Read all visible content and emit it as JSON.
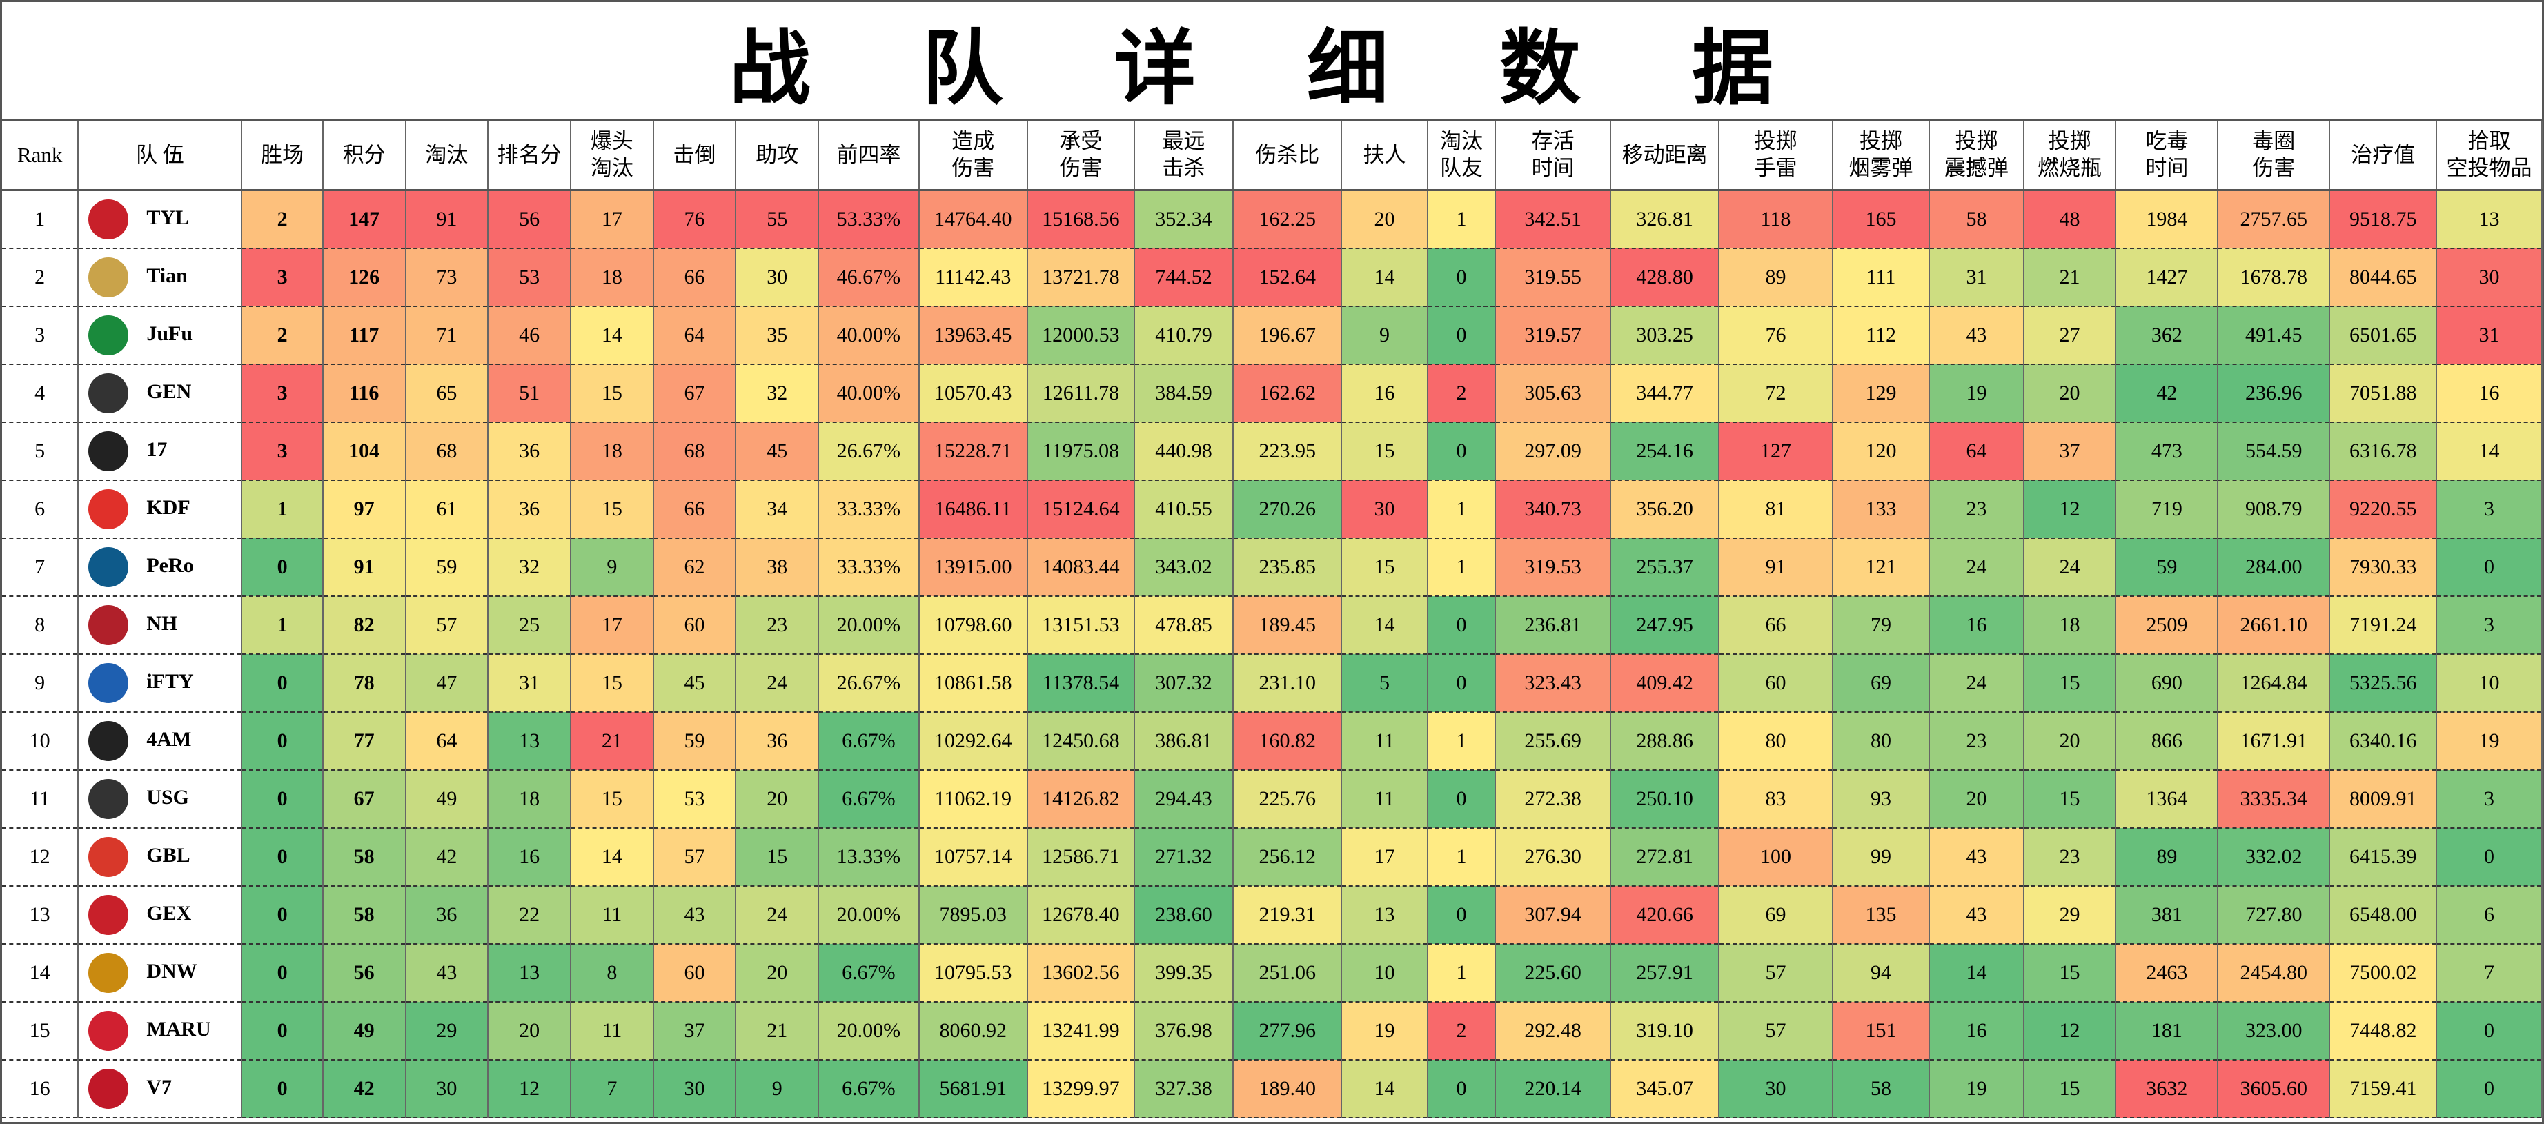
{
  "title": "战 队 详 细 数 据",
  "table": {
    "header": [
      "Rank",
      "队 伍",
      "胜场",
      "积分",
      "淘汰",
      "排名分",
      "爆头\n淘汰",
      "击倒",
      "助攻",
      "前四率",
      "造成\n伤害",
      "承受\n伤害",
      "最远\n击杀",
      "伤杀比",
      "扶人",
      "淘汰\n队友",
      "存活\n时间",
      "移动距离",
      "投掷\n手雷",
      "投掷\n烟雾弹",
      "投掷\n震撼弹",
      "投掷\n燃烧瓶",
      "吃毒\n时间",
      "毒圈\n伤害",
      "治疗值",
      "拾取\n空投物品"
    ],
    "rows": [
      [
        "1",
        "TYL",
        "2",
        "147",
        "91",
        "56",
        "17",
        "76",
        "55",
        "53.33%",
        "14764.40",
        "15168.56",
        "352.34",
        "162.25",
        "20",
        "1",
        "342.51",
        "326.81",
        "118",
        "165",
        "58",
        "48",
        "1984",
        "2757.65",
        "9518.75",
        "13"
      ],
      [
        "2",
        "Tian",
        "3",
        "126",
        "73",
        "53",
        "18",
        "66",
        "30",
        "46.67%",
        "11142.43",
        "13721.78",
        "744.52",
        "152.64",
        "14",
        "0",
        "319.55",
        "428.80",
        "89",
        "111",
        "31",
        "21",
        "1427",
        "1678.78",
        "8044.65",
        "30"
      ],
      [
        "3",
        "JuFu",
        "2",
        "117",
        "71",
        "46",
        "14",
        "64",
        "35",
        "40.00%",
        "13963.45",
        "12000.53",
        "410.79",
        "196.67",
        "9",
        "0",
        "319.57",
        "303.25",
        "76",
        "112",
        "43",
        "27",
        "362",
        "491.45",
        "6501.65",
        "31"
      ],
      [
        "4",
        "GEN",
        "3",
        "116",
        "65",
        "51",
        "15",
        "67",
        "32",
        "40.00%",
        "10570.43",
        "12611.78",
        "384.59",
        "162.62",
        "16",
        "2",
        "305.63",
        "344.77",
        "72",
        "129",
        "19",
        "20",
        "42",
        "236.96",
        "7051.88",
        "16"
      ],
      [
        "5",
        "17",
        "3",
        "104",
        "68",
        "36",
        "18",
        "68",
        "45",
        "26.67%",
        "15228.71",
        "11975.08",
        "440.98",
        "223.95",
        "15",
        "0",
        "297.09",
        "254.16",
        "127",
        "120",
        "64",
        "37",
        "473",
        "554.59",
        "6316.78",
        "14"
      ],
      [
        "6",
        "KDF",
        "1",
        "97",
        "61",
        "36",
        "15",
        "66",
        "34",
        "33.33%",
        "16486.11",
        "15124.64",
        "410.55",
        "270.26",
        "30",
        "1",
        "340.73",
        "356.20",
        "81",
        "133",
        "23",
        "12",
        "719",
        "908.79",
        "9220.55",
        "3"
      ],
      [
        "7",
        "PeRo",
        "0",
        "91",
        "59",
        "32",
        "9",
        "62",
        "38",
        "33.33%",
        "13915.00",
        "14083.44",
        "343.02",
        "235.85",
        "15",
        "1",
        "319.53",
        "255.37",
        "91",
        "121",
        "24",
        "24",
        "59",
        "284.00",
        "7930.33",
        "0"
      ],
      [
        "8",
        "NH",
        "1",
        "82",
        "57",
        "25",
        "17",
        "60",
        "23",
        "20.00%",
        "10798.60",
        "13151.53",
        "478.85",
        "189.45",
        "14",
        "0",
        "236.81",
        "247.95",
        "66",
        "79",
        "16",
        "18",
        "2509",
        "2661.10",
        "7191.24",
        "3"
      ],
      [
        "9",
        "iFTY",
        "0",
        "78",
        "47",
        "31",
        "15",
        "45",
        "24",
        "26.67%",
        "10861.58",
        "11378.54",
        "307.32",
        "231.10",
        "5",
        "0",
        "323.43",
        "409.42",
        "60",
        "69",
        "24",
        "15",
        "690",
        "1264.84",
        "5325.56",
        "10"
      ],
      [
        "10",
        "4AM",
        "0",
        "77",
        "64",
        "13",
        "21",
        "59",
        "36",
        "6.67%",
        "10292.64",
        "12450.68",
        "386.81",
        "160.82",
        "11",
        "1",
        "255.69",
        "288.86",
        "80",
        "80",
        "23",
        "20",
        "866",
        "1671.91",
        "6340.16",
        "19"
      ],
      [
        "11",
        "USG",
        "0",
        "67",
        "49",
        "18",
        "15",
        "53",
        "20",
        "6.67%",
        "11062.19",
        "14126.82",
        "294.43",
        "225.76",
        "11",
        "0",
        "272.38",
        "250.10",
        "83",
        "93",
        "20",
        "15",
        "1364",
        "3335.34",
        "8009.91",
        "3"
      ],
      [
        "12",
        "GBL",
        "0",
        "58",
        "42",
        "16",
        "14",
        "57",
        "15",
        "13.33%",
        "10757.14",
        "12586.71",
        "271.32",
        "256.12",
        "17",
        "1",
        "276.30",
        "272.81",
        "100",
        "99",
        "43",
        "23",
        "89",
        "332.02",
        "6415.39",
        "0"
      ],
      [
        "13",
        "GEX",
        "0",
        "58",
        "36",
        "22",
        "11",
        "43",
        "24",
        "20.00%",
        "7895.03",
        "12678.40",
        "238.60",
        "219.31",
        "13",
        "0",
        "307.94",
        "420.66",
        "69",
        "135",
        "43",
        "29",
        "381",
        "727.80",
        "6548.00",
        "6"
      ],
      [
        "14",
        "DNW",
        "0",
        "56",
        "43",
        "13",
        "8",
        "60",
        "20",
        "6.67%",
        "10795.53",
        "13602.56",
        "399.35",
        "251.06",
        "10",
        "1",
        "225.60",
        "257.91",
        "57",
        "94",
        "14",
        "15",
        "2463",
        "2454.80",
        "7500.02",
        "7"
      ],
      [
        "15",
        "MARU",
        "0",
        "49",
        "29",
        "20",
        "11",
        "37",
        "21",
        "20.00%",
        "8060.92",
        "13241.99",
        "376.98",
        "277.96",
        "19",
        "2",
        "292.48",
        "319.10",
        "57",
        "151",
        "16",
        "12",
        "181",
        "323.00",
        "7448.82",
        "0"
      ],
      [
        "16",
        "V7",
        "0",
        "42",
        "30",
        "12",
        "7",
        "30",
        "9",
        "6.67%",
        "5681.91",
        "13299.97",
        "327.38",
        "189.40",
        "14",
        "0",
        "220.14",
        "345.07",
        "30",
        "58",
        "19",
        "15",
        "3632",
        "3605.60",
        "7159.41",
        "0"
      ]
    ]
  }
}
